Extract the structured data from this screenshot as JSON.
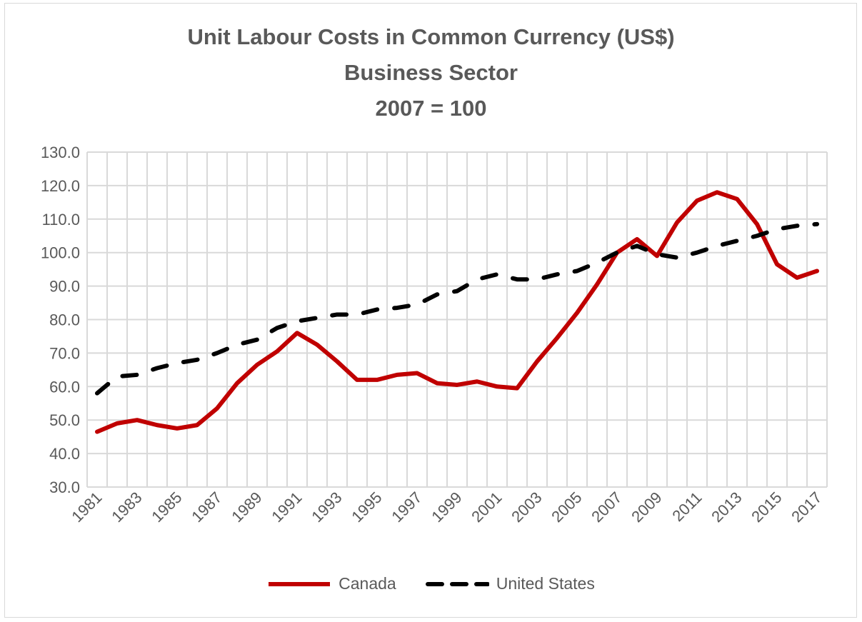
{
  "chart_data": {
    "type": "line",
    "title": [
      "Unit Labour Costs in Common Currency (US$)",
      "Business Sector",
      "2007 = 100"
    ],
    "x": [
      1981,
      1982,
      1983,
      1984,
      1985,
      1986,
      1987,
      1988,
      1989,
      1990,
      1991,
      1992,
      1993,
      1994,
      1995,
      1996,
      1997,
      1998,
      1999,
      2000,
      2001,
      2002,
      2003,
      2004,
      2005,
      2006,
      2007,
      2008,
      2009,
      2010,
      2011,
      2012,
      2013,
      2014,
      2015,
      2016,
      2017
    ],
    "x_tick_labels": [
      "1981",
      "1983",
      "1985",
      "1987",
      "1989",
      "1991",
      "1993",
      "1995",
      "1997",
      "1999",
      "2001",
      "2003",
      "2005",
      "2007",
      "2009",
      "2011",
      "2013",
      "2015",
      "2017"
    ],
    "ylim": [
      30,
      130
    ],
    "y_ticks": [
      "30.0",
      "40.0",
      "50.0",
      "60.0",
      "70.0",
      "80.0",
      "90.0",
      "100.0",
      "110.0",
      "120.0",
      "130.0"
    ],
    "grid": true,
    "legend_placement": "bottom",
    "series": [
      {
        "name": "Canada",
        "color": "#c00000",
        "style": "solid",
        "values": [
          46.5,
          49,
          50,
          48.5,
          47.5,
          48.5,
          53.5,
          61,
          66.5,
          70.5,
          76,
          72.5,
          67.5,
          62,
          62,
          63.5,
          64,
          61,
          60.5,
          61.5,
          60,
          59.5,
          67.5,
          74.5,
          82,
          90.5,
          100,
          104,
          99,
          109,
          115.5,
          118,
          116,
          108.5,
          96.5,
          92.5,
          94.5
        ]
      },
      {
        "name": "United States",
        "color": "#000000",
        "style": "dashed",
        "values": [
          58,
          63,
          63.5,
          65.5,
          67,
          68,
          70,
          72.5,
          74,
          77.5,
          79.5,
          80.5,
          81.5,
          81.5,
          83,
          83.5,
          84.5,
          87.5,
          88.5,
          92,
          93.5,
          92,
          92,
          93.5,
          94.5,
          97,
          100,
          102,
          99.5,
          98.5,
          100,
          102,
          103.5,
          105,
          107,
          108,
          108.5
        ]
      }
    ]
  }
}
